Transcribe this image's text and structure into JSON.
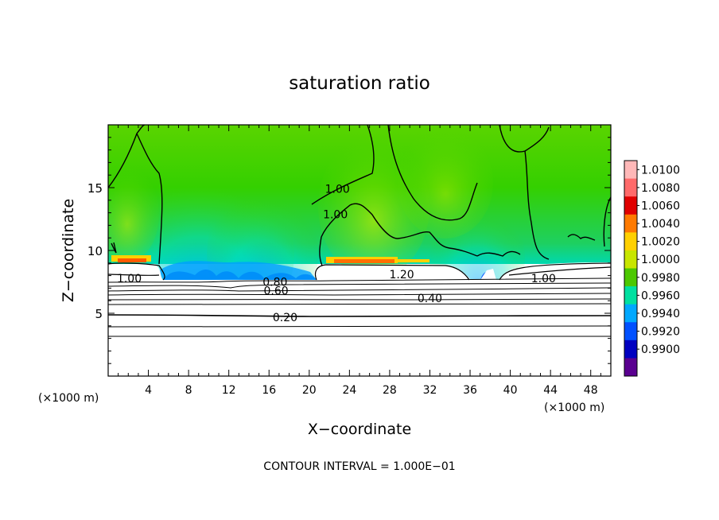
{
  "chart_data": {
    "type": "heatmap",
    "title": "saturation ratio",
    "xlabel": "X−coordinate",
    "ylabel": "Z−coordinate",
    "x_unit_left": "(×1000 m)",
    "x_unit_right": "(×1000 m)",
    "xlim": [
      0,
      50
    ],
    "ylim": [
      0,
      20
    ],
    "x_ticks": [
      4,
      8,
      12,
      16,
      20,
      24,
      28,
      32,
      36,
      40,
      44,
      48
    ],
    "y_ticks": [
      5,
      10,
      15
    ],
    "footer": "CONTOUR INTERVAL = 1.000E−01",
    "grid": false,
    "colorbar": {
      "labels": [
        "1.0100",
        "1.0080",
        "1.0060",
        "1.0040",
        "1.0020",
        "1.0000",
        "0.9980",
        "0.9960",
        "0.9940",
        "0.9920",
        "0.9900"
      ],
      "colors": [
        "#ffb8b8",
        "#ff6a6a",
        "#e00000",
        "#ff7a00",
        "#ffd000",
        "#c8e600",
        "#4cc800",
        "#00e0a0",
        "#00a8ff",
        "#0050ff",
        "#0000c0",
        "#5a0090"
      ]
    },
    "contour_labels": [
      {
        "text": "1.00",
        "x": 2.1,
        "y": 7.6
      },
      {
        "text": "1.00",
        "x": 22.8,
        "y": 14.7
      },
      {
        "text": "1.00",
        "x": 22.6,
        "y": 12.7
      },
      {
        "text": "1.20",
        "x": 29.2,
        "y": 7.9
      },
      {
        "text": "1.00",
        "x": 43.3,
        "y": 7.6
      },
      {
        "text": "0.80",
        "x": 16.6,
        "y": 7.3
      },
      {
        "text": "0.60",
        "x": 16.7,
        "y": 6.6
      },
      {
        "text": "0.40",
        "x": 32.0,
        "y": 6.0
      },
      {
        "text": "0.20",
        "x": 17.6,
        "y": 4.5
      }
    ]
  }
}
